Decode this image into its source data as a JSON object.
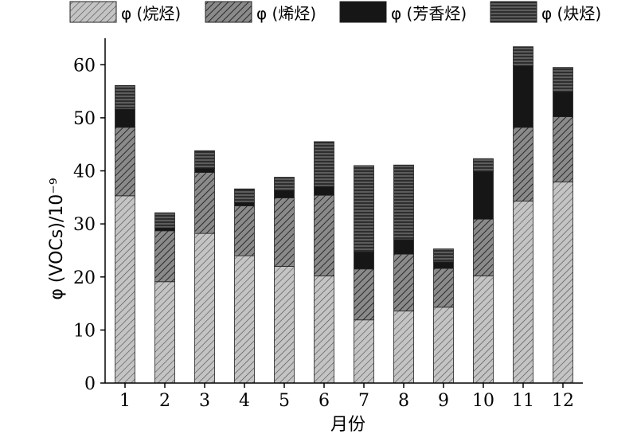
{
  "chart_data": {
    "type": "bar",
    "stacked": true,
    "categories": [
      "1",
      "2",
      "3",
      "4",
      "5",
      "6",
      "7",
      "8",
      "9",
      "10",
      "11",
      "12"
    ],
    "series": [
      {
        "name": "φ (烷烃)",
        "pattern": "hatch-light",
        "values": [
          35.3,
          19.1,
          28.2,
          24.0,
          22.0,
          20.2,
          11.9,
          13.6,
          14.3,
          20.2,
          34.3,
          37.9
        ]
      },
      {
        "name": "φ (烯烃)",
        "pattern": "hatch-dark",
        "values": [
          12.9,
          9.6,
          11.5,
          9.4,
          12.9,
          15.2,
          9.6,
          10.7,
          7.3,
          10.7,
          13.9,
          12.3
        ]
      },
      {
        "name": "φ (芳香烃)",
        "pattern": "solid-black",
        "values": [
          3.4,
          0.6,
          0.8,
          0.7,
          1.4,
          1.7,
          3.2,
          2.7,
          1.2,
          9.0,
          11.6,
          4.7
        ]
      },
      {
        "name": "φ (炔烃)",
        "pattern": "horizontal-lines",
        "values": [
          4.5,
          2.8,
          3.3,
          2.5,
          2.5,
          8.4,
          16.3,
          14.1,
          2.5,
          2.4,
          3.6,
          4.6
        ]
      }
    ],
    "xlabel": "月份",
    "ylabel": "φ (VOCs)/10⁻⁹",
    "ylim": [
      0,
      65
    ],
    "yticks": [
      0,
      10,
      20,
      30,
      40,
      50,
      60
    ],
    "grid": false,
    "legend": "top"
  }
}
